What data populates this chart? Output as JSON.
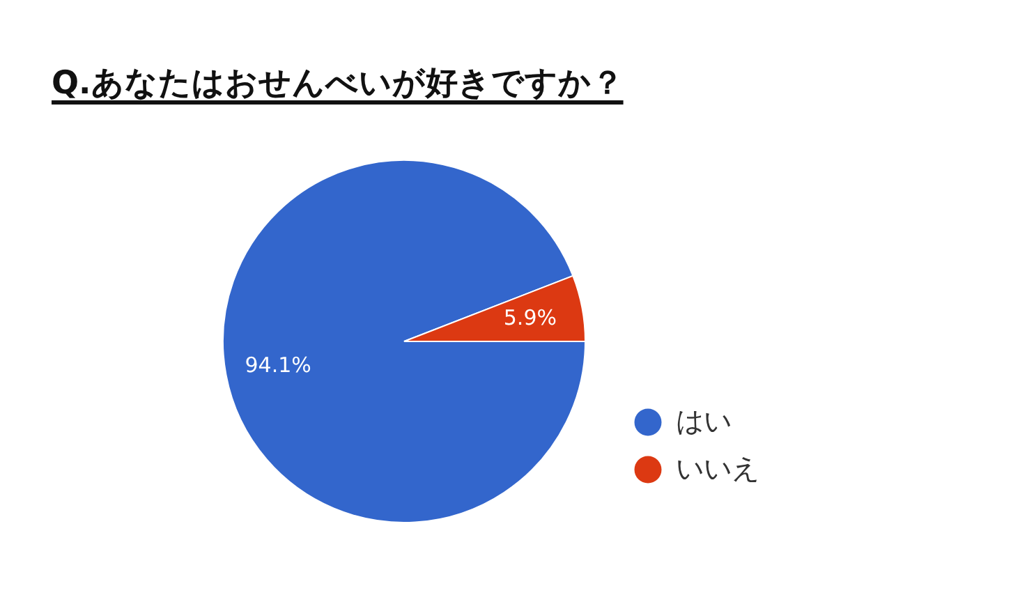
{
  "chart_data": {
    "type": "pie",
    "title": "Q.あなたはおせんべいが好きですか？",
    "categories": [
      "はい",
      "いいえ"
    ],
    "values": [
      94.1,
      5.9
    ],
    "colors": [
      "#3366cc",
      "#dc3912"
    ],
    "value_labels": [
      "94.1%",
      "5.9%"
    ],
    "legend": "right"
  }
}
